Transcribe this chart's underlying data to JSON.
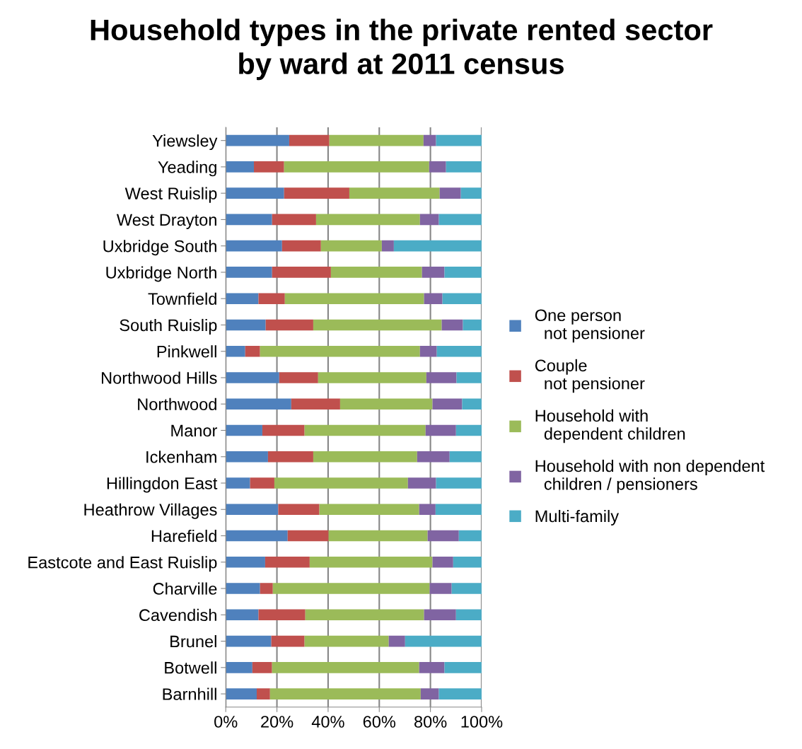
{
  "chart_data": {
    "type": "bar",
    "orientation": "horizontal",
    "stacked": true,
    "title": "Household types in the private rented sector\nby ward at 2011 census",
    "categories": [
      "Yiewsley",
      "Yeading",
      "West Ruislip",
      "West Drayton",
      "Uxbridge South",
      "Uxbridge North",
      "Townfield",
      "South Ruislip",
      "Pinkwell",
      "Northwood Hills",
      "Northwood",
      "Manor",
      "Ickenham",
      "Hillingdon East",
      "Heathrow Villages",
      "Harefield",
      "Eastcote and East Ruislip",
      "Charville",
      "Cavendish",
      "Brunel",
      "Botwell",
      "Barnhill"
    ],
    "series": [
      {
        "name": "One person\n  not pensioner",
        "color": "#4f81bd",
        "values": [
          24.8,
          11.0,
          22.8,
          18.1,
          22.0,
          18.1,
          12.8,
          15.6,
          7.6,
          20.9,
          25.6,
          14.3,
          16.5,
          9.5,
          20.5,
          24.2,
          15.4,
          13.4,
          12.8,
          17.8,
          10.4,
          12.1
        ]
      },
      {
        "name": "Couple\n  not pensioner",
        "color": "#c0504d",
        "values": [
          15.7,
          11.8,
          25.5,
          17.2,
          15.2,
          23.0,
          10.3,
          18.6,
          5.8,
          15.2,
          19.1,
          16.5,
          17.7,
          9.5,
          16.1,
          16.0,
          17.4,
          5.0,
          18.3,
          13.0,
          7.7,
          5.2
        ]
      },
      {
        "name": "Household with\n  dependent children",
        "color": "#9bbb59",
        "values": [
          36.8,
          56.7,
          35.3,
          40.6,
          23.8,
          35.6,
          54.4,
          50.2,
          62.5,
          42.3,
          36.1,
          47.3,
          40.6,
          52.2,
          39.0,
          38.7,
          48.0,
          61.3,
          46.4,
          32.9,
          57.5,
          58.9
        ]
      },
      {
        "name": "Household with non dependent\n  children / pensioners",
        "color": "#8064a2",
        "values": [
          4.9,
          6.6,
          8.3,
          7.4,
          4.7,
          8.8,
          7.2,
          8.3,
          6.6,
          11.8,
          11.6,
          11.9,
          12.7,
          11.0,
          6.4,
          12.2,
          8.1,
          8.6,
          12.5,
          6.4,
          9.9,
          7.1
        ]
      },
      {
        "name": "Multi-family",
        "color": "#4bacc6",
        "values": [
          17.8,
          13.9,
          8.1,
          16.7,
          34.3,
          14.5,
          15.3,
          7.3,
          17.5,
          9.8,
          7.6,
          10.0,
          12.5,
          17.8,
          18.0,
          8.9,
          11.1,
          11.7,
          10.0,
          29.9,
          14.5,
          16.7
        ]
      }
    ],
    "xlim": [
      0,
      100
    ],
    "xticks": [
      {
        "value": 0,
        "label": "0%"
      },
      {
        "value": 20,
        "label": "20%"
      },
      {
        "value": 40,
        "label": "40%"
      },
      {
        "value": 60,
        "label": "60%"
      },
      {
        "value": 80,
        "label": "80%"
      },
      {
        "value": 100,
        "label": "100%"
      }
    ],
    "grid": "x",
    "legend": "right"
  }
}
